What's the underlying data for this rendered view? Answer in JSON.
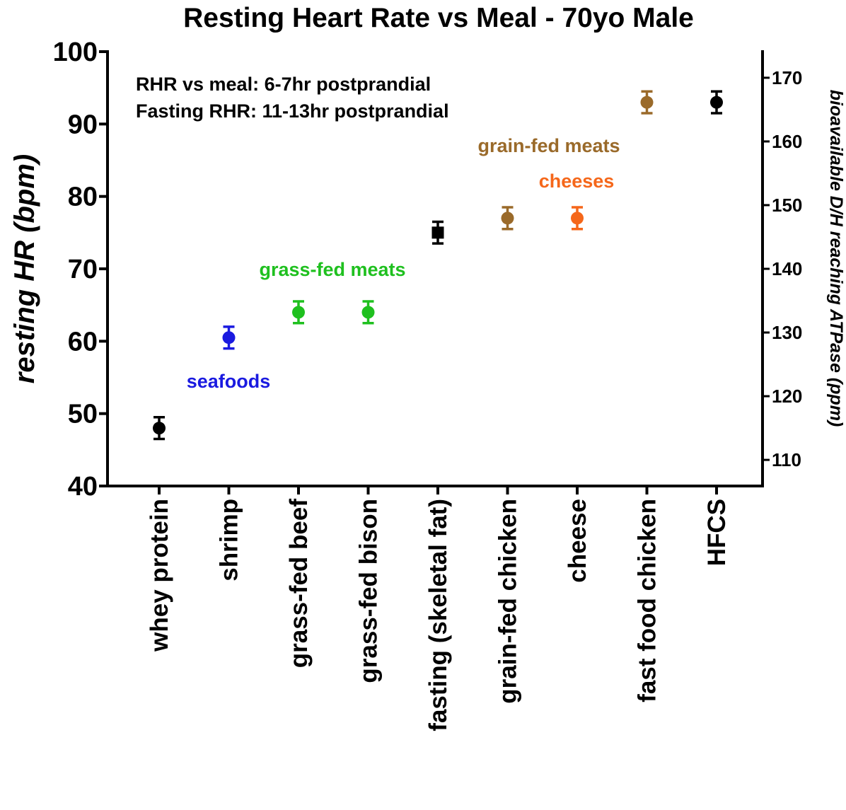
{
  "chart_data": {
    "type": "errorbar",
    "title": "Resting Heart Rate vs Meal - 70yo Male",
    "y_label": "resting HR (bpm)",
    "y2_label": "bioavailable D/H reaching ATPase (ppm)",
    "categories": [
      "whey protein",
      "shrimp",
      "grass-fed beef",
      "grass-fed bison",
      "fasting (skeletal fat)",
      "grain-fed chicken",
      "cheese",
      "fast food chicken",
      "HFCS"
    ],
    "values": [
      48,
      60.5,
      64,
      64,
      75,
      77,
      77,
      93,
      93
    ],
    "errors": [
      1.5,
      1.5,
      1.5,
      1.5,
      1.5,
      1.5,
      1.5,
      1.5,
      1.5
    ],
    "colors": [
      "#000000",
      "#1a1ae0",
      "#1fc01f",
      "#1fc01f",
      "#000000",
      "#9a6a2a",
      "#f5671a",
      "#9a6a2a",
      "#000000"
    ],
    "markers": [
      "circle",
      "circle",
      "circle",
      "circle",
      "square",
      "circle",
      "circle",
      "circle",
      "circle"
    ],
    "ylim": [
      40,
      100
    ],
    "yticks": [
      40,
      50,
      60,
      70,
      80,
      90,
      100
    ],
    "y2lim": [
      105.9,
      174.1
    ],
    "y2ticks": [
      110,
      120,
      130,
      140,
      150,
      160,
      170
    ],
    "annotations": [
      {
        "text": "RHR vs meal: 6-7hr postprandial",
        "color": "#000000"
      },
      {
        "text": "Fasting RHR: 11-13hr postprandial",
        "color": "#000000"
      },
      {
        "text": "seafoods",
        "color": "#1a1ae0"
      },
      {
        "text": "grass-fed meats",
        "color": "#1fc01f"
      },
      {
        "text": "grain-fed meats",
        "color": "#9a6a2a"
      },
      {
        "text": "cheeses",
        "color": "#f5671a"
      }
    ]
  }
}
